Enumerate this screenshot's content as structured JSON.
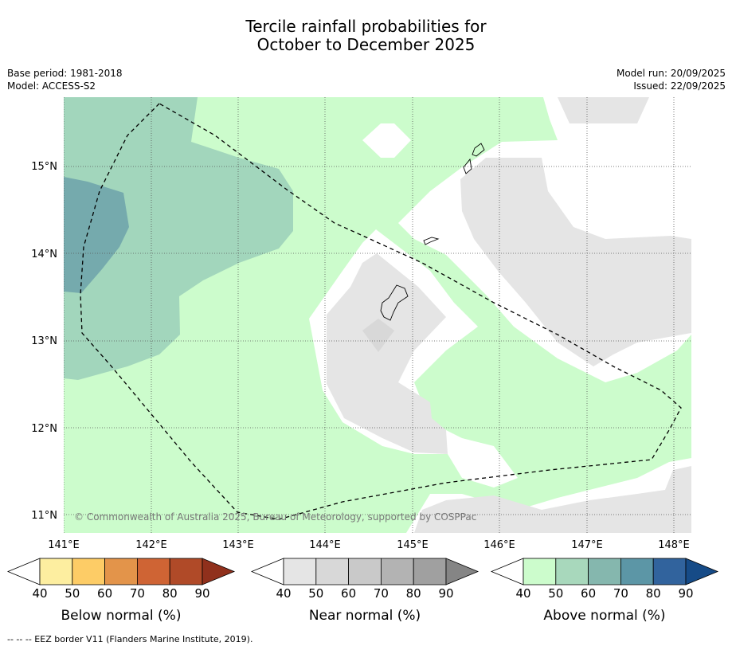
{
  "title": {
    "line1": "Tercile rainfall probabilities for",
    "line2": "October to December 2025"
  },
  "meta": {
    "base_period": "Base period: 1981-2018",
    "model": "Model: ACCESS-S2",
    "model_run": "Model run: 20/09/2025",
    "issued": "Issued: 22/09/2025"
  },
  "map": {
    "copyright": "© Commonwealth of Australia 2025, Bureau of Meteorology, supported by COSPPac",
    "lat_labels": [
      "15°N",
      "14°N",
      "13°N",
      "12°N",
      "11°N"
    ],
    "lon_labels": [
      "141°E",
      "142°E",
      "143°E",
      "144°E",
      "145°E",
      "146°E",
      "147°E",
      "148°E"
    ],
    "colors": {
      "above_40": "#ccfccc",
      "above_50": "#a2d6bc",
      "above_60": "#75aaad",
      "near_40": "#e5e5e5",
      "near_50": "#d8d8d8",
      "eez_line": "#000000"
    }
  },
  "colorbars": [
    {
      "label": "Below normal (%)",
      "ticks": [
        "40",
        "50",
        "60",
        "70",
        "80",
        "90"
      ],
      "colors": [
        "#ffffff",
        "#fdeea0",
        "#fdcc66",
        "#e3944a",
        "#cf6434",
        "#b04a28",
        "#90301c"
      ]
    },
    {
      "label": "Near normal (%)",
      "ticks": [
        "40",
        "50",
        "60",
        "70",
        "80",
        "90"
      ],
      "colors": [
        "#ffffff",
        "#e5e5e5",
        "#d8d8d8",
        "#c9c9c9",
        "#b3b3b3",
        "#a0a0a0",
        "#858585"
      ]
    },
    {
      "label": "Above normal (%)",
      "ticks": [
        "40",
        "50",
        "60",
        "70",
        "80",
        "90"
      ],
      "colors": [
        "#ffffff",
        "#ccfccc",
        "#a8d8bc",
        "#85b7ae",
        "#5c96a6",
        "#31639d",
        "#164b87"
      ]
    }
  ],
  "footnote": "--  --  -- EEZ border V11 (Flanders Marine Institute, 2019)."
}
